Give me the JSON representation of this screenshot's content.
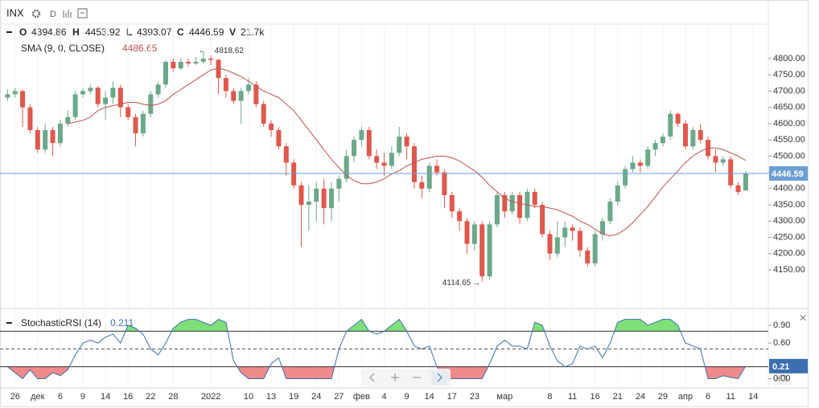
{
  "chart_data": {
    "type": "candlestick",
    "symbol": "INX",
    "interval": "D",
    "ohlc_labels": [
      "O",
      "H",
      "L",
      "C",
      "V"
    ],
    "volume_label": "21.7k",
    "up_color": "#6ba88a",
    "down_color": "#e0574c",
    "open": [
      4680,
      4690,
      4700,
      4650,
      4580,
      4520,
      4580,
      4540,
      4600,
      4620,
      4690,
      4700,
      4710,
      4660,
      4680,
      4710,
      4650,
      4620,
      4570,
      4630,
      4690,
      4720,
      4790,
      4770,
      4790,
      4785,
      4790,
      4800,
      4796,
      4740,
      4700,
      4670,
      4700,
      4720,
      4660,
      4600,
      4580,
      4530,
      4480,
      4410,
      4350,
      4360,
      4400,
      4340,
      4400,
      4430,
      4500,
      4550,
      4580,
      4500,
      4480,
      4470,
      4510,
      4560,
      4530,
      4420,
      4400,
      4470,
      4450,
      4380,
      4330,
      4300,
      4230,
      4290,
      4130,
      4290,
      4380,
      4330,
      4380,
      4310,
      4390,
      4350,
      4260,
      4200,
      4250,
      4280,
      4270,
      4210,
      4170,
      4260,
      4300,
      4360,
      4410,
      4460,
      4480,
      4470,
      4520,
      4540,
      4560,
      4630,
      4600,
      4530,
      4580,
      4550,
      4500,
      4480,
      4490,
      4410,
      4394.86
    ],
    "high": [
      4705,
      4710,
      4705,
      4660,
      4590,
      4600,
      4590,
      4610,
      4640,
      4700,
      4710,
      4720,
      4715,
      4700,
      4730,
      4720,
      4660,
      4630,
      4640,
      4700,
      4730,
      4795,
      4800,
      4800,
      4800,
      4805,
      4818.62,
      4810,
      4800,
      4750,
      4710,
      4710,
      4740,
      4730,
      4670,
      4610,
      4590,
      4540,
      4490,
      4420,
      4410,
      4420,
      4430,
      4420,
      4440,
      4520,
      4560,
      4590,
      4590,
      4520,
      4510,
      4530,
      4590,
      4570,
      4540,
      4440,
      4480,
      4490,
      4460,
      4390,
      4340,
      4310,
      4300,
      4300,
      4300,
      4390,
      4390,
      4390,
      4390,
      4400,
      4400,
      4360,
      4270,
      4300,
      4300,
      4290,
      4280,
      4220,
      4270,
      4310,
      4370,
      4420,
      4470,
      4500,
      4490,
      4530,
      4550,
      4570,
      4640,
      4635,
      4610,
      4590,
      4600,
      4560,
      4520,
      4500,
      4500,
      4420,
      4453.92
    ],
    "low": [
      4670,
      4680,
      4590,
      4570,
      4510,
      4510,
      4500,
      4530,
      4590,
      4610,
      4680,
      4690,
      4650,
      4610,
      4660,
      4620,
      4610,
      4530,
      4560,
      4620,
      4680,
      4710,
      4760,
      4765,
      4775,
      4780,
      4785,
      4780,
      4690,
      4680,
      4660,
      4600,
      4690,
      4650,
      4590,
      4560,
      4520,
      4440,
      4400,
      4220,
      4270,
      4300,
      4290,
      4300,
      4360,
      4420,
      4480,
      4530,
      4490,
      4460,
      4440,
      4460,
      4500,
      4490,
      4400,
      4370,
      4390,
      4440,
      4340,
      4310,
      4270,
      4200,
      4210,
      4114.65,
      4120,
      4280,
      4310,
      4320,
      4290,
      4300,
      4340,
      4250,
      4180,
      4190,
      4220,
      4240,
      4190,
      4160,
      4160,
      4240,
      4290,
      4350,
      4400,
      4450,
      4450,
      4460,
      4500,
      4530,
      4550,
      4590,
      4520,
      4520,
      4540,
      4490,
      4450,
      4470,
      4400,
      4380,
      4393.07
    ],
    "close": [
      4690,
      4700,
      4650,
      4580,
      4520,
      4580,
      4540,
      4600,
      4620,
      4690,
      4700,
      4710,
      4660,
      4680,
      4710,
      4650,
      4620,
      4570,
      4630,
      4690,
      4720,
      4790,
      4770,
      4790,
      4785,
      4790,
      4800,
      4796,
      4740,
      4700,
      4670,
      4700,
      4720,
      4660,
      4600,
      4580,
      4530,
      4480,
      4410,
      4350,
      4360,
      4400,
      4340,
      4400,
      4430,
      4500,
      4550,
      4580,
      4500,
      4480,
      4470,
      4510,
      4560,
      4530,
      4420,
      4400,
      4470,
      4450,
      4380,
      4330,
      4300,
      4230,
      4290,
      4130,
      4290,
      4380,
      4330,
      4380,
      4310,
      4390,
      4350,
      4260,
      4200,
      4250,
      4280,
      4270,
      4210,
      4170,
      4260,
      4300,
      4360,
      4410,
      4460,
      4480,
      4470,
      4520,
      4540,
      4560,
      4630,
      4600,
      4530,
      4580,
      4550,
      4500,
      4480,
      4490,
      4410,
      4390,
      4446.59
    ],
    "sma": {
      "name": "SMA (9, 0, CLOSE)",
      "color": "#c0504d",
      "values": [
        null,
        null,
        null,
        null,
        null,
        null,
        null,
        null,
        4600,
        4605,
        4610,
        4620,
        4640,
        4650,
        4655,
        4660,
        4665,
        4665,
        4660,
        4655,
        4660,
        4670,
        4690,
        4705,
        4720,
        4735,
        4750,
        4765,
        4770,
        4765,
        4755,
        4745,
        4730,
        4715,
        4700,
        4690,
        4680,
        4660,
        4640,
        4610,
        4580,
        4550,
        4520,
        4490,
        4465,
        4440,
        4425,
        4415,
        4415,
        4420,
        4430,
        4445,
        4455,
        4470,
        4480,
        4490,
        4495,
        4500,
        4500,
        4495,
        4485,
        4470,
        4455,
        4435,
        4410,
        4390,
        4370,
        4360,
        4355,
        4350,
        4345,
        4345,
        4340,
        4335,
        4325,
        4315,
        4300,
        4290,
        4275,
        4260,
        4255,
        4260,
        4275,
        4295,
        4320,
        4345,
        4375,
        4405,
        4430,
        4455,
        4480,
        4500,
        4515,
        4525,
        4525,
        4520,
        4510,
        4500,
        4486.65
      ]
    },
    "price_line_color": "#6a9fd4",
    "xlim": [
      -1,
      101
    ],
    "xticks": [
      {
        "value": 1,
        "label": "26"
      },
      {
        "value": 4,
        "label": "дек"
      },
      {
        "value": 7,
        "label": "6"
      },
      {
        "value": 10,
        "label": "9"
      },
      {
        "value": 13,
        "label": "14"
      },
      {
        "value": 16,
        "label": "16"
      },
      {
        "value": 19,
        "label": "22"
      },
      {
        "value": 22,
        "label": "28"
      },
      {
        "value": 27,
        "label": "2022"
      },
      {
        "value": 32,
        "label": "10"
      },
      {
        "value": 35,
        "label": "13"
      },
      {
        "value": 38,
        "label": "19"
      },
      {
        "value": 41,
        "label": "24"
      },
      {
        "value": 44,
        "label": "27"
      },
      {
        "value": 47,
        "label": "фев"
      },
      {
        "value": 50,
        "label": "4"
      },
      {
        "value": 53,
        "label": "9"
      },
      {
        "value": 56,
        "label": "14"
      },
      {
        "value": 59,
        "label": "17"
      },
      {
        "value": 62,
        "label": "23"
      },
      {
        "value": 66,
        "label": "мар"
      },
      {
        "value": 72,
        "label": "8"
      },
      {
        "value": 75,
        "label": "11"
      },
      {
        "value": 78,
        "label": "16"
      },
      {
        "value": 81,
        "label": "21"
      },
      {
        "value": 84,
        "label": "24"
      },
      {
        "value": 87,
        "label": "29"
      },
      {
        "value": 90,
        "label": "апр"
      },
      {
        "value": 93,
        "label": "6"
      },
      {
        "value": 96,
        "label": "11"
      },
      {
        "value": 99,
        "label": "14"
      }
    ],
    "ylim": [
      4034,
      4906
    ],
    "yticks": [
      {
        "value": 4150,
        "label": "4150.00"
      },
      {
        "value": 4200,
        "label": "4200.00"
      },
      {
        "value": 4250,
        "label": "4250.00"
      },
      {
        "value": 4300,
        "label": "4300.00"
      },
      {
        "value": 4350,
        "label": "4350.00"
      },
      {
        "value": 4400,
        "label": "4400.00"
      },
      {
        "value": 4450,
        "label": "4450.00"
      },
      {
        "value": 4500,
        "label": "4500.00"
      },
      {
        "value": 4550,
        "label": "4550.00"
      },
      {
        "value": 4600,
        "label": "4600.00"
      },
      {
        "value": 4650,
        "label": "4650.00"
      },
      {
        "value": 4700,
        "label": "4700.00"
      },
      {
        "value": 4750,
        "label": "4750.00"
      },
      {
        "value": 4800,
        "label": "4800.00"
      }
    ],
    "indicator": {
      "type": "line",
      "name": "StochasticRSI (14)",
      "color": "#3b6fb0",
      "last_value_label": "0.21",
      "upper_fill": "#7fe07a",
      "lower_fill": "#f08a8a",
      "values": [
        0.2,
        0.1,
        0.0,
        0.15,
        0.0,
        0.0,
        0.1,
        0.05,
        0.15,
        0.4,
        0.6,
        0.65,
        0.6,
        0.7,
        0.75,
        0.6,
        0.9,
        0.85,
        0.75,
        0.5,
        0.4,
        0.6,
        0.85,
        0.95,
        1,
        1,
        0.95,
        0.9,
        1,
        0.95,
        0.3,
        0.1,
        0,
        0,
        0,
        0.25,
        0.35,
        0,
        0,
        0,
        0,
        0,
        0,
        0,
        0.5,
        0.8,
        0.9,
        1,
        0.8,
        0.75,
        0.8,
        0.9,
        1,
        0.8,
        0.55,
        0.5,
        0.55,
        0.2,
        0,
        0,
        0,
        0,
        0,
        0,
        0.25,
        0.55,
        0.65,
        0.55,
        0.55,
        0.5,
        0.95,
        0.9,
        0.55,
        0.3,
        0.2,
        0.25,
        0.55,
        0.5,
        0.55,
        0.35,
        0.6,
        0.95,
        1,
        1,
        1,
        0.9,
        0.95,
        1,
        1,
        0.9,
        0.6,
        0.55,
        0.5,
        0.0,
        0.0,
        0.05,
        0.02,
        0.0,
        0.211
      ],
      "ylim": [
        -0.143,
        1.171
      ],
      "levels": [
        0.2,
        0.5,
        0.8
      ],
      "yticks": [
        {
          "value": 0,
          "label": "0.00"
        },
        {
          "value": 0.6,
          "label": "0.60"
        },
        {
          "value": 0.9,
          "label": "0.90"
        }
      ]
    }
  }
}
